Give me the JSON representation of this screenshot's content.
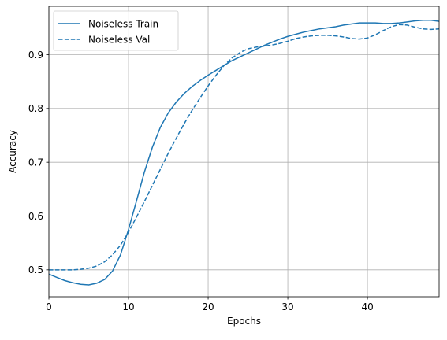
{
  "chart_data": {
    "type": "line",
    "title": "",
    "xlabel": "Epochs",
    "ylabel": "Accuracy",
    "xlim": [
      0,
      49
    ],
    "ylim": [
      0.45,
      0.99
    ],
    "xticks": [
      0,
      10,
      20,
      30,
      40
    ],
    "xtick_labels": [
      "0",
      "10",
      "20",
      "30",
      "40"
    ],
    "yticks": [
      0.5,
      0.6,
      0.7,
      0.8,
      0.9
    ],
    "ytick_labels": [
      "0.5",
      "0.6",
      "0.7",
      "0.8",
      "0.9"
    ],
    "grid": true,
    "legend_position": "top-left",
    "color": "#1f77b4",
    "x": [
      0,
      1,
      2,
      3,
      4,
      5,
      6,
      7,
      8,
      9,
      10,
      11,
      12,
      13,
      14,
      15,
      16,
      17,
      18,
      19,
      20,
      21,
      22,
      23,
      24,
      25,
      26,
      27,
      28,
      29,
      30,
      31,
      32,
      33,
      34,
      35,
      36,
      37,
      38,
      39,
      40,
      41,
      42,
      43,
      44,
      45,
      46,
      47,
      48,
      49
    ],
    "series": [
      {
        "name": "Noiseless Train",
        "style": "solid",
        "values": [
          0.492,
          0.486,
          0.48,
          0.476,
          0.473,
          0.472,
          0.475,
          0.482,
          0.498,
          0.528,
          0.575,
          0.628,
          0.682,
          0.728,
          0.765,
          0.792,
          0.812,
          0.828,
          0.841,
          0.852,
          0.862,
          0.871,
          0.88,
          0.889,
          0.896,
          0.903,
          0.91,
          0.917,
          0.923,
          0.929,
          0.934,
          0.938,
          0.942,
          0.945,
          0.948,
          0.95,
          0.952,
          0.955,
          0.957,
          0.959,
          0.959,
          0.959,
          0.958,
          0.958,
          0.959,
          0.961,
          0.963,
          0.964,
          0.964,
          0.962
        ]
      },
      {
        "name": "Noiseless Val",
        "style": "dashed",
        "values": [
          0.5,
          0.5,
          0.5,
          0.5,
          0.501,
          0.503,
          0.507,
          0.515,
          0.528,
          0.546,
          0.57,
          0.598,
          0.627,
          0.657,
          0.687,
          0.717,
          0.745,
          0.772,
          0.797,
          0.82,
          0.842,
          0.862,
          0.88,
          0.894,
          0.904,
          0.911,
          0.914,
          0.916,
          0.918,
          0.921,
          0.925,
          0.93,
          0.933,
          0.935,
          0.936,
          0.936,
          0.935,
          0.933,
          0.93,
          0.929,
          0.931,
          0.937,
          0.945,
          0.952,
          0.956,
          0.955,
          0.951,
          0.948,
          0.947,
          0.948
        ]
      }
    ]
  }
}
